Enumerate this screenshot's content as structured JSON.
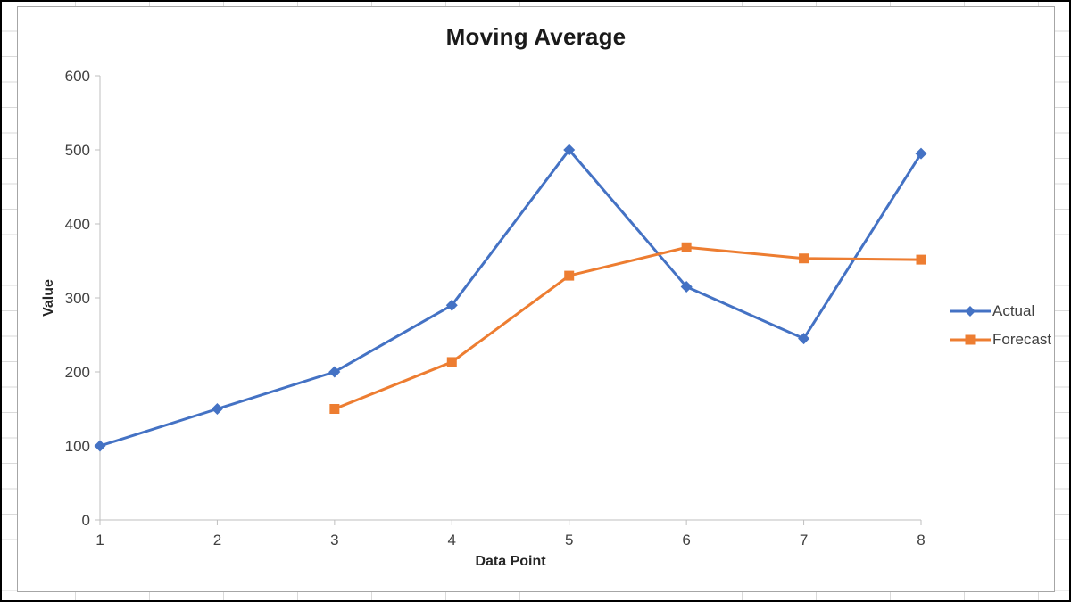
{
  "chart_data": {
    "type": "line",
    "title": "Moving Average",
    "xlabel": "Data Point",
    "ylabel": "Value",
    "categories": [
      1,
      2,
      3,
      4,
      5,
      6,
      7,
      8
    ],
    "series": [
      {
        "name": "Actual",
        "color": "#4472C4",
        "marker": "diamond",
        "values": [
          100,
          150,
          200,
          290,
          500,
          315,
          245,
          495
        ]
      },
      {
        "name": "Forecast",
        "color": "#ED7D31",
        "marker": "square",
        "values": [
          null,
          null,
          150,
          213.33,
          330,
          368.33,
          353.33,
          351.67
        ]
      }
    ],
    "ylim": [
      0,
      600
    ],
    "ytick_step": 100,
    "grid": false,
    "legend_position": "right"
  },
  "colors": {
    "accent_blue": "#4472C4",
    "accent_orange": "#ED7D31",
    "axis_line": "#BFBFBF",
    "tick_label": "#404040",
    "title_text": "#1a1a1a",
    "chart_border": "#A6A6A6",
    "sheet_gridline": "#DADADA"
  }
}
